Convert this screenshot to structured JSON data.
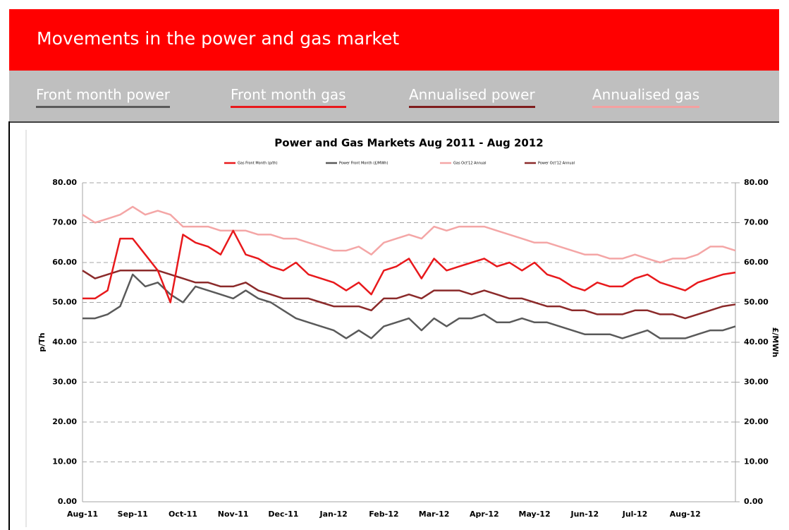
{
  "header": {
    "title": "Movements in the power and gas market"
  },
  "tabs": [
    {
      "label": "Front month power",
      "color": "#5a5a5a"
    },
    {
      "label": "Front month gas",
      "color": "#e8191c"
    },
    {
      "label": "Annualised power",
      "color": "#7f1d1d"
    },
    {
      "label": "Annualised gas",
      "color": "#f4a0a0"
    }
  ],
  "chart_data": {
    "type": "line",
    "title": "Power and Gas Markets Aug 2011 - Aug 2012",
    "ylabel": "p/Th",
    "y2label": "£/MWh",
    "categories": [
      "Aug-11",
      null,
      null,
      null,
      "Sep-11",
      null,
      null,
      null,
      "Oct-11",
      null,
      null,
      null,
      "Nov-11",
      null,
      null,
      null,
      "Dec-11",
      null,
      null,
      null,
      "Jan-12",
      null,
      null,
      null,
      "Feb-12",
      null,
      null,
      null,
      "Mar-12",
      null,
      null,
      null,
      "Apr-12",
      null,
      null,
      null,
      "May-12",
      null,
      null,
      null,
      "Jun-12",
      null,
      null,
      null,
      "Jul-12",
      null,
      null,
      null,
      "Aug-12",
      null,
      null,
      null,
      null
    ],
    "ylim": [
      0,
      80
    ],
    "yticks": [
      {
        "value": 0,
        "label": "0.00"
      },
      {
        "value": 10,
        "label": "10.00"
      },
      {
        "value": 20,
        "label": "20.00"
      },
      {
        "value": 30,
        "label": "30.00"
      },
      {
        "value": 40,
        "label": "40.00"
      },
      {
        "value": 50,
        "label": "50.00"
      },
      {
        "value": 60,
        "label": "60.00"
      },
      {
        "value": 70,
        "label": "70.00"
      },
      {
        "value": 80,
        "label": "80.00"
      }
    ],
    "y2lim": [
      0,
      80
    ],
    "y2ticks": [
      {
        "value": 0,
        "label": "0.00"
      },
      {
        "value": 10,
        "label": "10.00"
      },
      {
        "value": 20,
        "label": "20.00"
      },
      {
        "value": 30,
        "label": "30.00"
      },
      {
        "value": 40,
        "label": "40.00"
      },
      {
        "value": 50,
        "label": "50.00"
      },
      {
        "value": 60,
        "label": "60.00"
      },
      {
        "value": 70,
        "label": "70.00"
      },
      {
        "value": 80,
        "label": "80.00"
      }
    ],
    "grid": true,
    "series": [
      {
        "name": "Gas Front Month (p/th)",
        "color": "#e8191c",
        "values": [
          51,
          51,
          53,
          66,
          66,
          62,
          58,
          50,
          67,
          65,
          64,
          62,
          68,
          62,
          61,
          59,
          58,
          60,
          57,
          56,
          55,
          53,
          55,
          52,
          58,
          59,
          61,
          56,
          61,
          58,
          59,
          60,
          61,
          59,
          60,
          58,
          60,
          57,
          56,
          54,
          53,
          55,
          54,
          54,
          56,
          57,
          55,
          54,
          53,
          55,
          56,
          57,
          57.5
        ]
      },
      {
        "name": "Power Front Month (£/MWh)",
        "color": "#5a5a5a",
        "axis": "y2",
        "values": [
          46,
          46,
          47,
          49,
          57,
          54,
          55,
          52,
          50,
          54,
          53,
          52,
          51,
          53,
          51,
          50,
          48,
          46,
          45,
          44,
          43,
          41,
          43,
          41,
          44,
          45,
          46,
          43,
          46,
          44,
          46,
          46,
          47,
          45,
          45,
          46,
          45,
          45,
          44,
          43,
          42,
          42,
          42,
          41,
          42,
          43,
          41,
          41,
          41,
          42,
          43,
          43,
          44
        ]
      },
      {
        "name": "Gas Oct'12 Annual",
        "color": "#f4a6a6",
        "values": [
          72,
          70,
          71,
          72,
          74,
          72,
          73,
          72,
          69,
          69,
          69,
          68,
          68,
          68,
          67,
          67,
          66,
          66,
          65,
          64,
          63,
          63,
          64,
          62,
          65,
          66,
          67,
          66,
          69,
          68,
          69,
          69,
          69,
          68,
          67,
          66,
          65,
          65,
          64,
          63,
          62,
          62,
          61,
          61,
          62,
          61,
          60,
          61,
          61,
          62,
          64,
          64,
          63
        ]
      },
      {
        "name": "Power Oct'12 Annual",
        "color": "#8b2a2a",
        "axis": "y2",
        "values": [
          58,
          56,
          57,
          58,
          58,
          58,
          58,
          57,
          56,
          55,
          55,
          54,
          54,
          55,
          53,
          52,
          51,
          51,
          51,
          50,
          49,
          49,
          49,
          48,
          51,
          51,
          52,
          51,
          53,
          53,
          53,
          52,
          53,
          52,
          51,
          51,
          50,
          49,
          49,
          48,
          48,
          47,
          47,
          47,
          48,
          48,
          47,
          47,
          46,
          47,
          48,
          49,
          49.5
        ]
      }
    ]
  }
}
